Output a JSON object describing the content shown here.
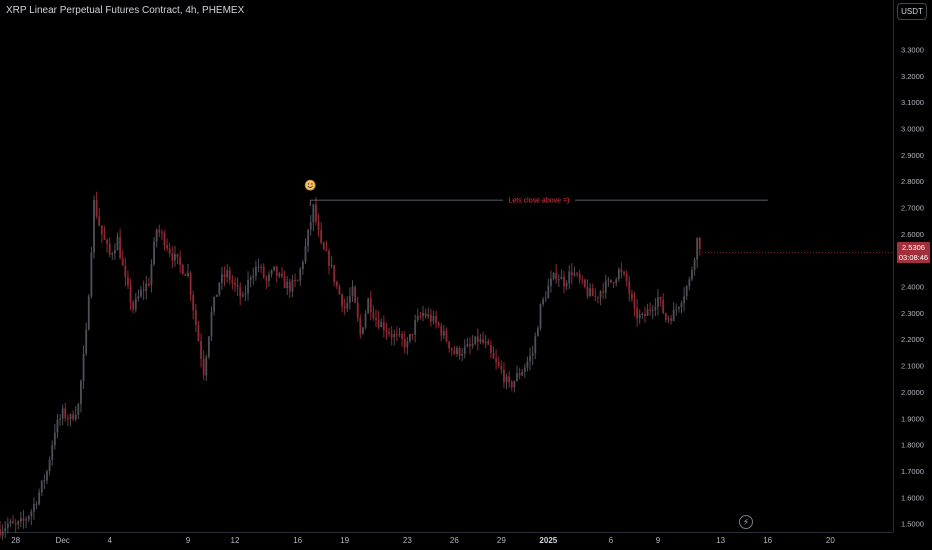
{
  "header": {
    "title": "XRP Linear Perpetual Futures Contract, 4h, PHEMEX"
  },
  "price_scale": {
    "currency_label": "USDT"
  },
  "colors": {
    "up": "#4e5058",
    "down": "#8f2a33",
    "background": "#000000"
  },
  "icons": {
    "replay": "lightning-icon",
    "emoji": "smiling-face-icon"
  },
  "chart_data": {
    "type": "candlestick",
    "interval": "4h",
    "ylim": [
      1.47,
      3.49
    ],
    "yticks": [
      "1.5000",
      "1.6000",
      "1.7000",
      "1.8000",
      "1.9000",
      "2.0000",
      "2.1000",
      "2.2000",
      "2.3000",
      "2.4000",
      "2.5000",
      "2.6000",
      "2.7000",
      "2.8000",
      "2.9000",
      "3.0000",
      "3.1000",
      "3.2000",
      "3.3000"
    ],
    "x_range_days": [
      0,
      57
    ],
    "xticks": [
      {
        "label": "28",
        "day": 1
      },
      {
        "label": "Dec",
        "day": 4
      },
      {
        "label": "4",
        "day": 7
      },
      {
        "label": "9",
        "day": 12
      },
      {
        "label": "12",
        "day": 15
      },
      {
        "label": "16",
        "day": 19
      },
      {
        "label": "19",
        "day": 22
      },
      {
        "label": "23",
        "day": 26
      },
      {
        "label": "26",
        "day": 29
      },
      {
        "label": "29",
        "day": 32
      },
      {
        "label": "2025",
        "day": 35
      },
      {
        "label": "6",
        "day": 39
      },
      {
        "label": "9",
        "day": 42
      },
      {
        "label": "13",
        "day": 46
      },
      {
        "label": "16",
        "day": 49
      },
      {
        "label": "20",
        "day": 53
      }
    ],
    "last_price": "2.5306",
    "countdown": "03:08:46",
    "annotation": {
      "text": "Lets close above =)",
      "level": 2.73,
      "from_day": 19.8,
      "to_day": 49
    },
    "path": [
      [
        0,
        1.48
      ],
      [
        0.5,
        1.5
      ],
      [
        1,
        1.49
      ],
      [
        1.5,
        1.51
      ],
      [
        2,
        1.55
      ],
      [
        2.5,
        1.62
      ],
      [
        3,
        1.7
      ],
      [
        3.5,
        1.86
      ],
      [
        4,
        1.92
      ],
      [
        4.5,
        1.9
      ],
      [
        5,
        1.95
      ],
      [
        5.5,
        2.22
      ],
      [
        6,
        2.72
      ],
      [
        6.5,
        2.6
      ],
      [
        7,
        2.52
      ],
      [
        7.5,
        2.58
      ],
      [
        8,
        2.42
      ],
      [
        8.5,
        2.32
      ],
      [
        9,
        2.38
      ],
      [
        9.5,
        2.42
      ],
      [
        10,
        2.62
      ],
      [
        10.5,
        2.58
      ],
      [
        11,
        2.52
      ],
      [
        11.5,
        2.48
      ],
      [
        12,
        2.45
      ],
      [
        12.5,
        2.26
      ],
      [
        13,
        2.08
      ],
      [
        13.5,
        2.3
      ],
      [
        14,
        2.42
      ],
      [
        14.5,
        2.45
      ],
      [
        15,
        2.4
      ],
      [
        15.5,
        2.35
      ],
      [
        16,
        2.45
      ],
      [
        16.5,
        2.48
      ],
      [
        17,
        2.42
      ],
      [
        17.5,
        2.46
      ],
      [
        18,
        2.42
      ],
      [
        18.5,
        2.4
      ],
      [
        19,
        2.42
      ],
      [
        19.5,
        2.55
      ],
      [
        20,
        2.7
      ],
      [
        20.5,
        2.55
      ],
      [
        21,
        2.5
      ],
      [
        21.5,
        2.4
      ],
      [
        22,
        2.32
      ],
      [
        22.5,
        2.38
      ],
      [
        23,
        2.22
      ],
      [
        23.5,
        2.35
      ],
      [
        24,
        2.28
      ],
      [
        24.5,
        2.25
      ],
      [
        25,
        2.22
      ],
      [
        25.5,
        2.2
      ],
      [
        26,
        2.18
      ],
      [
        26.5,
        2.26
      ],
      [
        27,
        2.3
      ],
      [
        27.5,
        2.28
      ],
      [
        28,
        2.25
      ],
      [
        28.5,
        2.2
      ],
      [
        29,
        2.15
      ],
      [
        29.5,
        2.16
      ],
      [
        30,
        2.17
      ],
      [
        30.5,
        2.2
      ],
      [
        31,
        2.18
      ],
      [
        31.5,
        2.12
      ],
      [
        32,
        2.08
      ],
      [
        32.5,
        2.02
      ],
      [
        33,
        2.06
      ],
      [
        33.5,
        2.1
      ],
      [
        34,
        2.15
      ],
      [
        34.5,
        2.32
      ],
      [
        35,
        2.4
      ],
      [
        35.5,
        2.45
      ],
      [
        36,
        2.42
      ],
      [
        36.5,
        2.46
      ],
      [
        37,
        2.42
      ],
      [
        37.5,
        2.38
      ],
      [
        38,
        2.36
      ],
      [
        38.5,
        2.4
      ],
      [
        39,
        2.42
      ],
      [
        39.5,
        2.46
      ],
      [
        40,
        2.42
      ],
      [
        40.5,
        2.3
      ],
      [
        41,
        2.28
      ],
      [
        41.5,
        2.32
      ],
      [
        42,
        2.36
      ],
      [
        42.5,
        2.28
      ],
      [
        43,
        2.3
      ],
      [
        43.5,
        2.36
      ],
      [
        44,
        2.42
      ],
      [
        44.5,
        2.58
      ],
      [
        44.8,
        2.55
      ]
    ]
  }
}
